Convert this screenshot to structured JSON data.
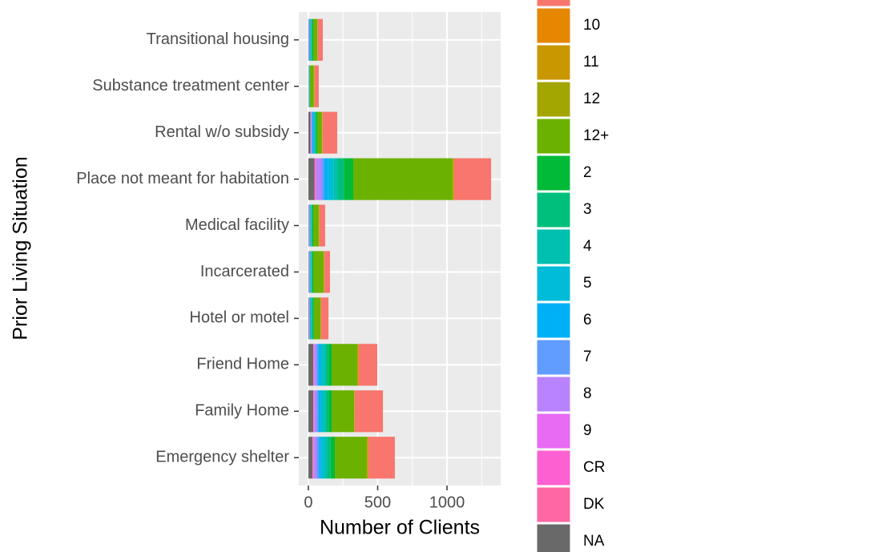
{
  "chart_data": {
    "type": "bar",
    "orientation": "horizontal",
    "stacked": true,
    "x_label": "Number of Clients",
    "y_label": "Prior Living Situation",
    "categories": [
      "Emergency shelter",
      "Family Home",
      "Friend Home",
      "Hotel or motel",
      "Incarcerated",
      "Medical facility",
      "Place not meant for habitation",
      "Rental w/o subsidy",
      "Substance treatment center",
      "Transitional housing"
    ],
    "series": [
      {
        "name": null,
        "color": "#F8766D",
        "values": [
          190,
          203,
          133,
          53,
          40,
          40,
          266,
          104,
          29,
          35
        ]
      },
      {
        "name": "10",
        "color": "#E58700",
        "values": [
          5,
          2,
          5,
          2,
          2,
          2,
          5,
          2,
          2,
          2
        ]
      },
      {
        "name": "11",
        "color": "#C99800",
        "values": [
          3,
          1,
          3,
          1,
          2,
          2,
          3,
          2,
          2,
          1
        ]
      },
      {
        "name": "12",
        "color": "#A3A500",
        "values": [
          4,
          2,
          3,
          2,
          2,
          2,
          4,
          2,
          2,
          2
        ]
      },
      {
        "name": "12+",
        "color": "#6BB100",
        "values": [
          231,
          162,
          185,
          47,
          75,
          40,
          716,
          34,
          28,
          29
        ]
      },
      {
        "name": "2",
        "color": "#00BA38",
        "values": [
          30,
          20,
          20,
          8,
          7,
          7,
          68,
          8,
          2,
          7
        ]
      },
      {
        "name": "3",
        "color": "#00BF7D",
        "values": [
          25,
          23,
          23,
          7,
          5,
          5,
          45,
          6,
          2,
          6
        ]
      },
      {
        "name": "4",
        "color": "#00C0AF",
        "values": [
          20,
          18,
          20,
          5,
          4,
          4,
          30,
          6,
          2,
          5
        ]
      },
      {
        "name": "5",
        "color": "#00BCD8",
        "values": [
          25,
          20,
          18,
          5,
          5,
          5,
          40,
          8,
          1,
          5
        ]
      },
      {
        "name": "6",
        "color": "#00B0F6",
        "values": [
          15,
          15,
          15,
          4,
          4,
          4,
          25,
          7,
          1,
          4
        ]
      },
      {
        "name": "7",
        "color": "#619CFF",
        "values": [
          15,
          12,
          15,
          2,
          2,
          2,
          20,
          5,
          1,
          2
        ]
      },
      {
        "name": "8",
        "color": "#B983FF",
        "values": [
          20,
          15,
          12,
          2,
          3,
          3,
          35,
          5,
          1,
          2
        ]
      },
      {
        "name": "9",
        "color": "#E76BF3",
        "values": [
          5,
          5,
          5,
          2,
          2,
          2,
          8,
          2,
          0,
          1
        ]
      },
      {
        "name": "CR",
        "color": "#FD61D1",
        "values": [
          3,
          3,
          3,
          0,
          0,
          0,
          5,
          1,
          0,
          0
        ]
      },
      {
        "name": "DK",
        "color": "#FF67A4",
        "values": [
          3,
          2,
          2,
          0,
          0,
          0,
          3,
          1,
          0,
          0
        ]
      },
      {
        "name": "NA",
        "color": "#696969",
        "values": [
          30,
          35,
          35,
          5,
          3,
          3,
          45,
          15,
          2,
          3
        ]
      }
    ],
    "xlim": [
      -69,
      1387
    ],
    "xticks": [
      0,
      500,
      1000
    ],
    "grid": true
  }
}
